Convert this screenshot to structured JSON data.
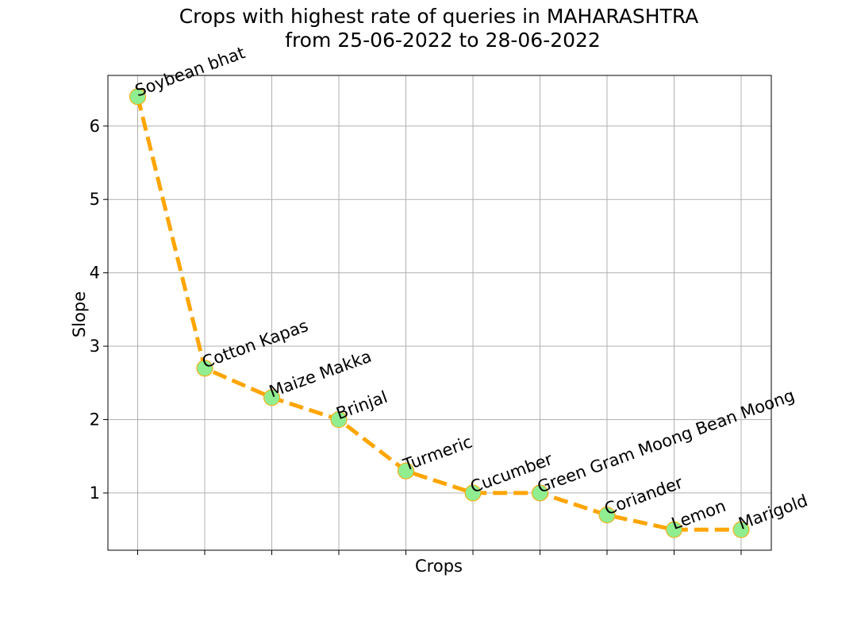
{
  "chart_data": {
    "type": "line",
    "title_line1": "Crops with highest rate of queries in MAHARASHTRA",
    "title_line2": "from 25-06-2022 to 28-06-2022",
    "xlabel": "Crops",
    "ylabel": "Slope",
    "categories": [
      "Soybean bhat",
      "Cotton Kapas",
      "Maize Makka",
      "Brinjal",
      "Turmeric",
      "Cucumber",
      "Green Gram Moong Bean Moong",
      "Coriander",
      "Lemon",
      "Marigold"
    ],
    "values": [
      6.4,
      2.7,
      2.3,
      2.0,
      1.3,
      1.0,
      1.0,
      0.7,
      0.5,
      0.5
    ],
    "ylim": [
      0.22,
      6.69
    ],
    "yticks": [
      "1",
      "2",
      "3",
      "4",
      "5",
      "6"
    ],
    "grid": true,
    "legend": false,
    "colors": {
      "line": "#ffa500",
      "marker_fill": "#90ee90",
      "marker_edge": "#ffa500",
      "grid": "#b0b0b0",
      "axes": "#000000"
    }
  }
}
